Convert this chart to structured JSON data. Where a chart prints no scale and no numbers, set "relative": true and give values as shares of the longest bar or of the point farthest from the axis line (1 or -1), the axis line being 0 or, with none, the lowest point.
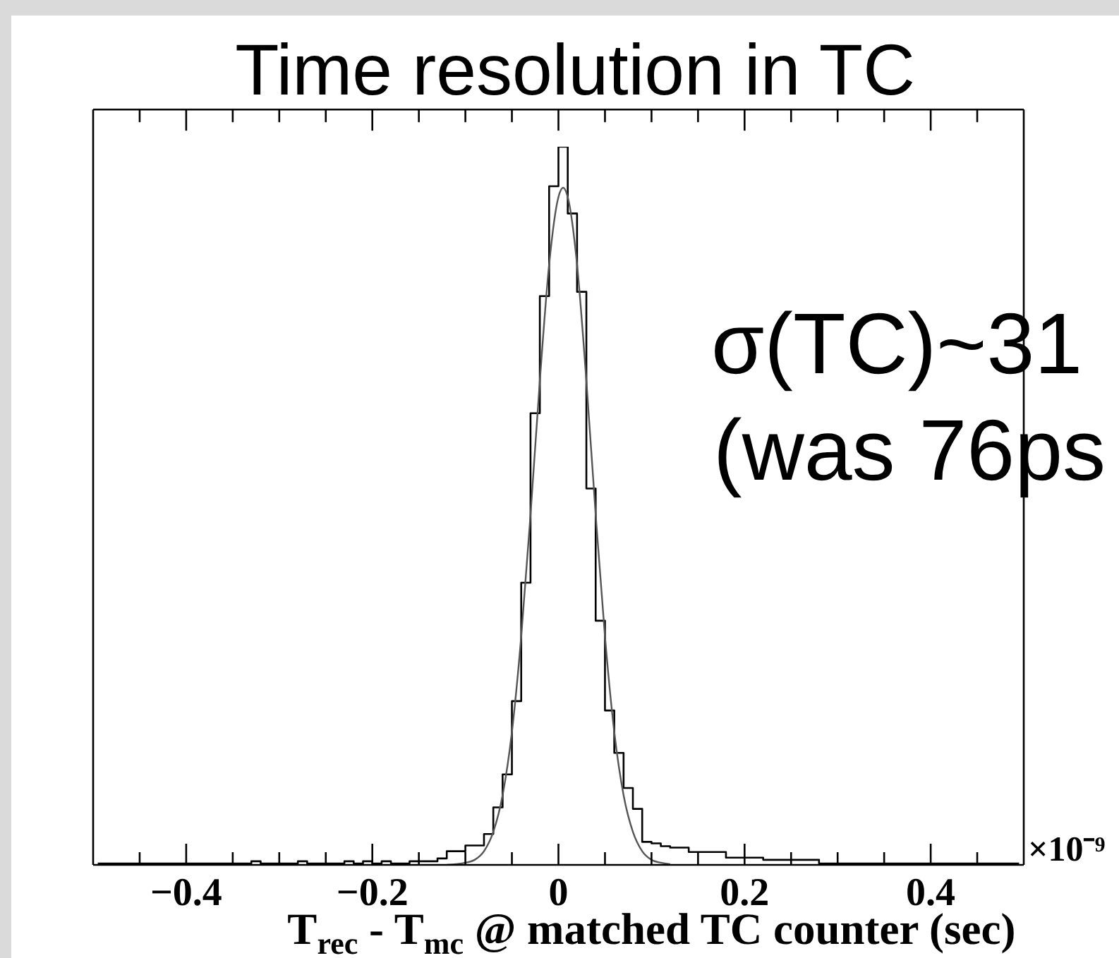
{
  "chart_data": {
    "type": "step",
    "title": "Time resolution in TC",
    "xlabel": "T$_{rec}$ - T$_{mc}$ @ matched TC counter (sec)",
    "annotations": [
      "σ(TC)~31",
      "(was 76ps",
      "×10⁻⁹"
    ],
    "relative": true,
    "xlim": [
      -0.5,
      0.5
    ],
    "xticks": [
      {
        "value": -0.45,
        "label": null
      },
      -0.4,
      {
        "value": -0.35,
        "label": null
      },
      {
        "value": -0.3,
        "label": null
      },
      {
        "value": -0.25,
        "label": null
      },
      -0.2,
      {
        "value": -0.15,
        "label": null
      },
      {
        "value": -0.1,
        "label": null
      },
      {
        "value": -0.05,
        "label": null
      },
      0,
      {
        "value": 0.05,
        "label": null
      },
      {
        "value": 0.1,
        "label": null
      },
      {
        "value": 0.15,
        "label": null
      },
      0.2,
      {
        "value": 0.25,
        "label": null
      },
      {
        "value": 0.3,
        "label": null
      },
      {
        "value": 0.35,
        "label": null
      },
      0.4,
      {
        "value": 0.45,
        "label": null
      }
    ],
    "x": [
      -0.495,
      -0.485,
      -0.475,
      -0.465,
      -0.455,
      -0.445,
      -0.435,
      -0.425,
      -0.415,
      -0.405,
      -0.395,
      -0.385,
      -0.375,
      -0.365,
      -0.355,
      -0.345,
      -0.335,
      -0.325,
      -0.315,
      -0.305,
      -0.295,
      -0.285,
      -0.275,
      -0.265,
      -0.255,
      -0.245,
      -0.235,
      -0.225,
      -0.215,
      -0.205,
      -0.195,
      -0.185,
      -0.175,
      -0.165,
      -0.155,
      -0.145,
      -0.135,
      -0.125,
      -0.115,
      -0.105,
      -0.095,
      -0.085,
      -0.075,
      -0.065,
      -0.055,
      -0.045,
      -0.035,
      -0.025,
      -0.015,
      -0.005,
      0.005,
      0.015,
      0.025,
      0.035,
      0.045,
      0.055,
      0.065,
      0.075,
      0.085,
      0.095,
      0.105,
      0.115,
      0.125,
      0.135,
      0.145,
      0.155,
      0.165,
      0.175,
      0.185,
      0.195,
      0.205,
      0.215,
      0.225,
      0.235,
      0.245,
      0.255,
      0.265,
      0.275,
      0.285,
      0.295,
      0.305,
      0.315,
      0.325,
      0.335,
      0.345,
      0.355,
      0.365,
      0.375,
      0.385,
      0.395,
      0.405,
      0.415,
      0.425,
      0.435,
      0.445,
      0.455,
      0.465,
      0.475,
      0.485,
      0.495
    ],
    "series": [
      {
        "color": "#000000",
        "values": [
          0.002,
          0.002,
          0.002,
          0.002,
          0.002,
          0.002,
          0.002,
          0.002,
          0.002,
          0.002,
          0.002,
          0.002,
          0.002,
          0.002,
          0.002,
          0.002,
          0.002,
          0.005,
          0.002,
          0.002,
          0.002,
          0.002,
          0.005,
          0.002,
          0.002,
          0.002,
          0.002,
          0.005,
          0.002,
          0.005,
          0.002,
          0.005,
          0.002,
          0.002,
          0.005,
          0.005,
          0.005,
          0.009,
          0.019,
          0.019,
          0.027,
          0.027,
          0.043,
          0.08,
          0.126,
          0.228,
          0.393,
          0.629,
          0.792,
          0.945,
          1,
          0.907,
          0.798,
          0.524,
          0.34,
          0.215,
          0.156,
          0.107,
          0.078,
          0.032,
          0.03,
          0.026,
          0.024,
          0.024,
          0.018,
          0.018,
          0.018,
          0.018,
          0.01,
          0.01,
          0.01,
          0.01,
          0.007,
          0.007,
          0.007,
          0.007,
          0.007,
          0.007,
          0.002,
          0.002,
          0.002,
          0.002,
          0.002,
          0.002,
          0.002,
          0.002,
          0.002,
          0.002,
          0.002,
          0.002,
          0.002,
          0.002,
          0.002,
          0.002,
          0.002,
          0.002,
          0.002,
          0.002,
          0.002,
          0.002
        ]
      },
      {
        "type": "line",
        "color": "#555555",
        "x": [
          -0.12,
          -0.1,
          -0.09,
          -0.08,
          -0.07,
          -0.06,
          -0.05,
          -0.04,
          -0.03,
          -0.02,
          -0.01,
          0,
          0.005,
          0.01,
          0.02,
          0.03,
          0.04,
          0.05,
          0.06,
          0.07,
          0.08,
          0.09,
          0.1,
          0.11,
          0.12
        ],
        "values": [
          0,
          0.003,
          0.007,
          0.019,
          0.046,
          0.097,
          0.185,
          0.318,
          0.488,
          0.674,
          0.836,
          0.93,
          0.943,
          0.93,
          0.836,
          0.674,
          0.488,
          0.318,
          0.185,
          0.097,
          0.046,
          0.019,
          0.007,
          0.003,
          0.001
        ]
      }
    ]
  }
}
